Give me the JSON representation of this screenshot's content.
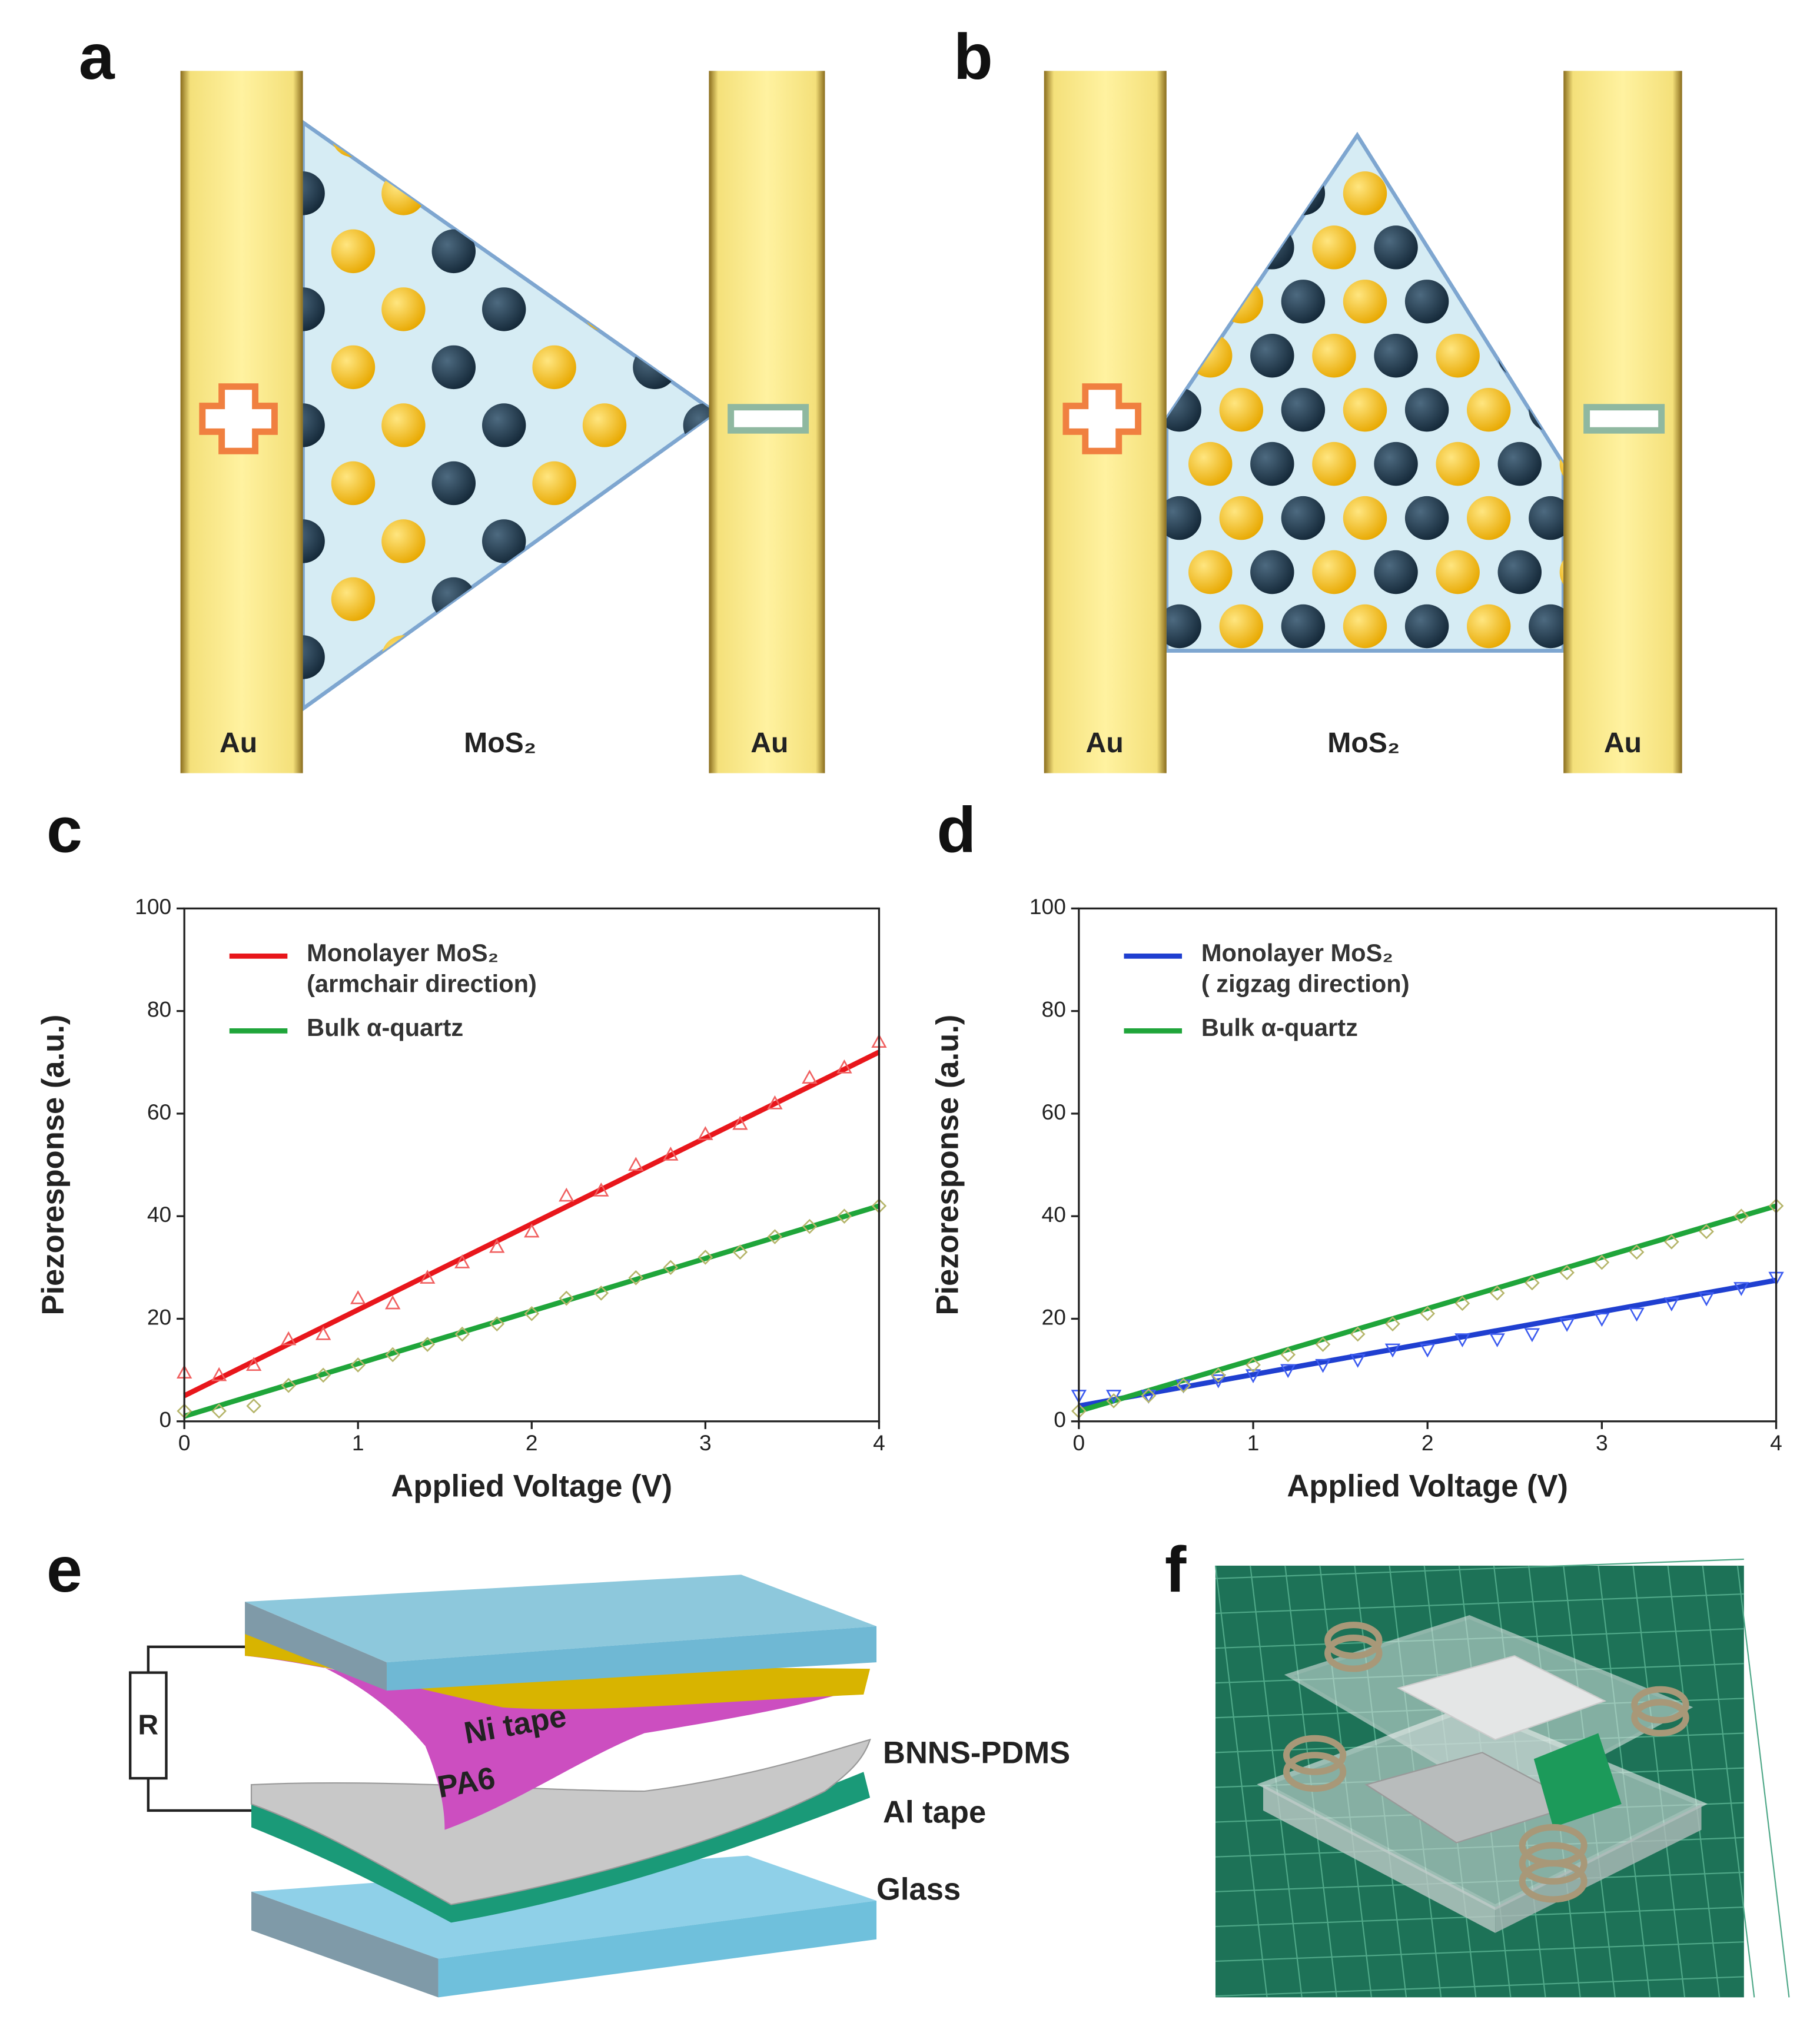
{
  "panels": [
    "a",
    "b",
    "c",
    "d",
    "e",
    "f"
  ],
  "diagram_a": {
    "electrode_left": "Au",
    "material": "MoS₂",
    "electrode_right": "Au"
  },
  "diagram_b": {
    "electrode_left": "Au",
    "material": "MoS₂",
    "electrode_right": "Au"
  },
  "chart_data": [
    {
      "type": "line",
      "ylabel": "Piezoresponse (a.u.)",
      "xlabel": "Applied Voltage (V)",
      "xlim": [
        0,
        4
      ],
      "xticks": [
        0,
        1,
        2,
        3,
        4
      ],
      "ylim": [
        0,
        100
      ],
      "yticks": [
        0,
        20,
        40,
        60,
        80,
        100
      ],
      "legend": "upper left",
      "series": [
        {
          "name": "Monolayer MoS₂\n(armchair direction)",
          "type": "line",
          "color": "#e8161b",
          "x": [
            0,
            4
          ],
          "values": [
            5,
            72
          ]
        },
        {
          "name": "Bulk α-quartz",
          "type": "line",
          "color": "#1fa53a",
          "x": [
            0,
            4
          ],
          "values": [
            1,
            42
          ]
        },
        {
          "type": "scatter",
          "marker": "triangle",
          "color": "#f06060",
          "x": [
            0,
            0.2,
            0.4,
            0.6,
            0.8,
            1,
            1.2,
            1.4,
            1.6,
            1.8,
            2,
            2.2,
            2.4,
            2.6,
            2.8,
            3,
            3.2,
            3.4,
            3.6,
            3.8,
            4
          ],
          "values": [
            9.5,
            9,
            11,
            16,
            17,
            24,
            23,
            28,
            31,
            34,
            37,
            44,
            45,
            50,
            52,
            56,
            58,
            62,
            67,
            69,
            74
          ]
        },
        {
          "type": "scatter",
          "marker": "diamond",
          "color": "#b5b56a",
          "x": [
            0,
            0.2,
            0.4,
            0.6,
            0.8,
            1,
            1.2,
            1.4,
            1.6,
            1.8,
            2,
            2.2,
            2.4,
            2.6,
            2.8,
            3,
            3.2,
            3.4,
            3.6,
            3.8,
            4
          ],
          "values": [
            2,
            2,
            3,
            7,
            9,
            11,
            13,
            15,
            17,
            19,
            21,
            24,
            25,
            28,
            30,
            32,
            33,
            36,
            38,
            40,
            42
          ]
        }
      ]
    },
    {
      "type": "line",
      "ylabel": "Piezoresponse (a.u.)",
      "xlabel": "Applied Voltage (V)",
      "xlim": [
        0,
        4
      ],
      "xticks": [
        0,
        1,
        2,
        3,
        4
      ],
      "ylim": [
        0,
        100
      ],
      "yticks": [
        0,
        20,
        40,
        60,
        80,
        100
      ],
      "legend": "upper left",
      "series": [
        {
          "name": "Monolayer MoS₂\n( zigzag direction)",
          "type": "line",
          "color": "#1f3fd0",
          "x": [
            0,
            4
          ],
          "values": [
            3,
            27.5
          ]
        },
        {
          "name": "Bulk α-quartz",
          "type": "line",
          "color": "#1fa53a",
          "x": [
            0,
            4
          ],
          "values": [
            2,
            42
          ]
        },
        {
          "type": "scatter",
          "marker": "triangle-down",
          "color": "#3d5cf0",
          "x": [
            0,
            0.2,
            0.4,
            0.6,
            0.8,
            1,
            1.2,
            1.4,
            1.6,
            1.8,
            2,
            2.2,
            2.4,
            2.6,
            2.8,
            3,
            3.2,
            3.4,
            3.6,
            3.8,
            4
          ],
          "values": [
            5,
            5,
            5,
            7,
            8,
            9,
            10,
            11,
            12,
            14,
            14,
            16,
            16,
            17,
            19,
            20,
            21,
            23,
            24,
            26,
            28
          ]
        },
        {
          "type": "scatter",
          "marker": "diamond",
          "color": "#b5b56a",
          "x": [
            0,
            0.2,
            0.4,
            0.6,
            0.8,
            1,
            1.2,
            1.4,
            1.6,
            1.8,
            2,
            2.2,
            2.4,
            2.6,
            2.8,
            3,
            3.2,
            3.4,
            3.6,
            3.8,
            4
          ],
          "values": [
            2,
            4,
            5,
            7,
            9,
            11,
            13,
            15,
            17,
            19,
            21,
            23,
            25,
            27,
            29,
            31,
            33,
            35,
            37,
            40,
            42
          ]
        }
      ]
    }
  ],
  "diagram_e": {
    "resistor": "R",
    "layers": [
      "Ni tape",
      "PA6",
      "BNNS-PDMS",
      "Al tape",
      "Glass"
    ]
  }
}
